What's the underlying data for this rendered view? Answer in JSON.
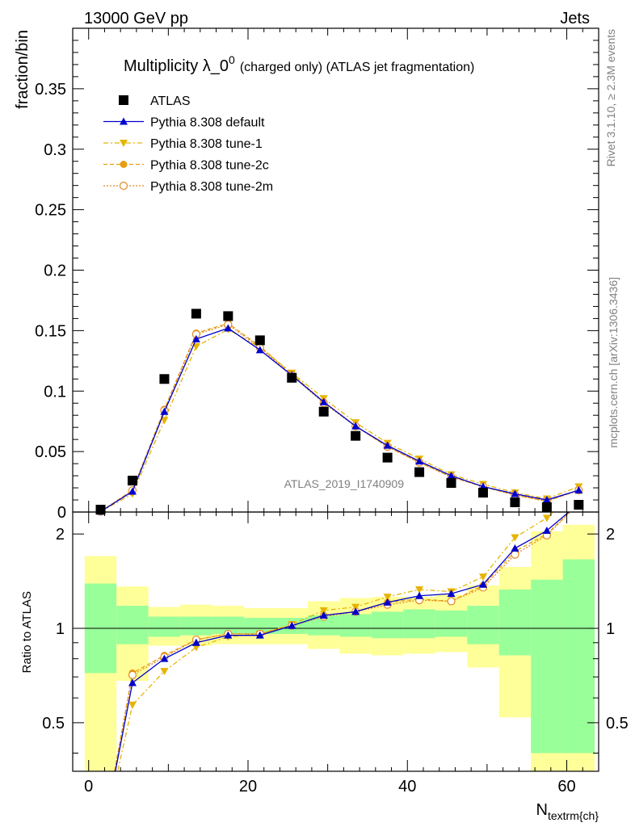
{
  "header": {
    "left": "13000 GeV pp",
    "right": "Jets"
  },
  "title": {
    "main": "Multiplicity λ_0",
    "superscript": "0",
    "suffix": "(charged only) (ATLAS jet fragmentation)"
  },
  "side_labels": {
    "rivet": "Rivet 3.1.10, ≥ 2.3M events",
    "mcplots": "mcplots.cern.ch [arXiv:1306.3436]"
  },
  "watermark": "ATLAS_2019_I1740909",
  "axes": {
    "ylabel_top": "fraction/bin",
    "ylabel_bottom": "Ratio to ATLAS",
    "xlabel": "N",
    "xlabel_sub": "textrm{ch}",
    "x_ticks": [
      "0",
      "20",
      "40",
      "60"
    ],
    "y_ticks_top": [
      "0",
      "0.05",
      "0.1",
      "0.15",
      "0.2",
      "0.25",
      "0.3",
      "0.35"
    ],
    "y_ticks_bottom": [
      "0.5",
      "1",
      "2"
    ]
  },
  "colors": {
    "data": "#000000",
    "default": "#0000cc",
    "tune1": "#e6b400",
    "tune2c": "#e69e10",
    "tune2m": "#e08a20",
    "band_inner": "#99ff99",
    "band_outer": "#ffff99"
  },
  "chart_data": {
    "type": "scatter",
    "x": [
      1.5,
      5.5,
      9.5,
      13.5,
      17.5,
      21.5,
      25.5,
      29.5,
      33.5,
      37.5,
      41.5,
      45.5,
      49.5,
      53.5,
      57.5,
      61.5
    ],
    "bin_edges": [
      -0.5,
      3.5,
      7.5,
      11.5,
      15.5,
      19.5,
      23.5,
      27.5,
      31.5,
      35.5,
      39.5,
      43.5,
      47.5,
      51.5,
      55.5,
      59.5,
      63.5
    ],
    "xlim": [
      -2,
      64
    ],
    "ylim": [
      0,
      0.4
    ],
    "ratio_ylim": [
      0.35,
      2.35
    ],
    "ratio_scale": "log",
    "series": [
      {
        "name": "ATLAS",
        "key": "data",
        "values": [
          0.002,
          0.026,
          0.11,
          0.164,
          0.162,
          0.142,
          0.111,
          0.083,
          0.063,
          0.045,
          0.033,
          0.024,
          0.016,
          0.008,
          0.004,
          0.006
        ]
      },
      {
        "name": "Pythia 8.308 default",
        "key": "default",
        "values": [
          0.0004,
          0.017,
          0.083,
          0.143,
          0.152,
          0.134,
          0.113,
          0.091,
          0.071,
          0.055,
          0.042,
          0.03,
          0.021,
          0.015,
          0.01,
          0.018
        ]
      },
      {
        "name": "Pythia 8.308 tune-1",
        "key": "tune1",
        "values": [
          0.0003,
          0.015,
          0.076,
          0.137,
          0.151,
          0.136,
          0.115,
          0.094,
          0.074,
          0.057,
          0.044,
          0.031,
          0.023,
          0.016,
          0.011,
          0.021
        ]
      },
      {
        "name": "Pythia 8.308 tune-2c",
        "key": "tune2c",
        "values": [
          0.0004,
          0.018,
          0.085,
          0.148,
          0.156,
          0.137,
          0.114,
          0.091,
          0.071,
          0.054,
          0.041,
          0.029,
          0.021,
          0.014,
          0.009,
          0.018
        ]
      },
      {
        "name": "Pythia 8.308 tune-2m",
        "key": "tune2m",
        "values": [
          0.0004,
          0.018,
          0.084,
          0.147,
          0.155,
          0.136,
          0.113,
          0.09,
          0.071,
          0.054,
          0.041,
          0.029,
          0.021,
          0.014,
          0.009,
          0.018
        ]
      }
    ],
    "ratios": {
      "default": [
        0.2,
        0.67,
        0.8,
        0.9,
        0.95,
        0.95,
        1.02,
        1.1,
        1.13,
        1.21,
        1.27,
        1.29,
        1.38,
        1.8,
        2.05,
        2.5
      ],
      "tune1": [
        0.2,
        0.57,
        0.73,
        0.87,
        0.94,
        0.96,
        1.03,
        1.14,
        1.17,
        1.26,
        1.33,
        1.31,
        1.46,
        1.95,
        2.25,
        2.8
      ],
      "tune2c": [
        0.2,
        0.72,
        0.82,
        0.92,
        0.96,
        0.96,
        1.02,
        1.1,
        1.13,
        1.21,
        1.24,
        1.22,
        1.37,
        1.76,
        2.0,
        2.5
      ],
      "tune2m": [
        0.2,
        0.71,
        0.81,
        0.92,
        0.96,
        0.96,
        1.02,
        1.09,
        1.13,
        1.19,
        1.23,
        1.22,
        1.35,
        1.72,
        1.98,
        2.5
      ]
    },
    "bands": {
      "inner_lo": [
        0.72,
        0.89,
        0.94,
        0.95,
        0.96,
        0.96,
        0.96,
        0.95,
        0.94,
        0.93,
        0.93,
        0.94,
        0.89,
        0.82,
        0.4,
        0.4
      ],
      "inner_hi": [
        1.39,
        1.18,
        1.09,
        1.09,
        1.09,
        1.08,
        1.08,
        1.1,
        1.11,
        1.13,
        1.15,
        1.14,
        1.18,
        1.33,
        1.43,
        1.66
      ],
      "outer_lo": [
        0.35,
        0.68,
        0.88,
        0.88,
        0.89,
        0.89,
        0.89,
        0.86,
        0.83,
        0.82,
        0.83,
        0.84,
        0.75,
        0.52,
        0.35,
        0.35
      ],
      "outer_hi": [
        1.7,
        1.36,
        1.17,
        1.19,
        1.18,
        1.16,
        1.16,
        1.22,
        1.25,
        1.26,
        1.26,
        1.28,
        1.37,
        1.57,
        2.04,
        2.14
      ]
    }
  }
}
